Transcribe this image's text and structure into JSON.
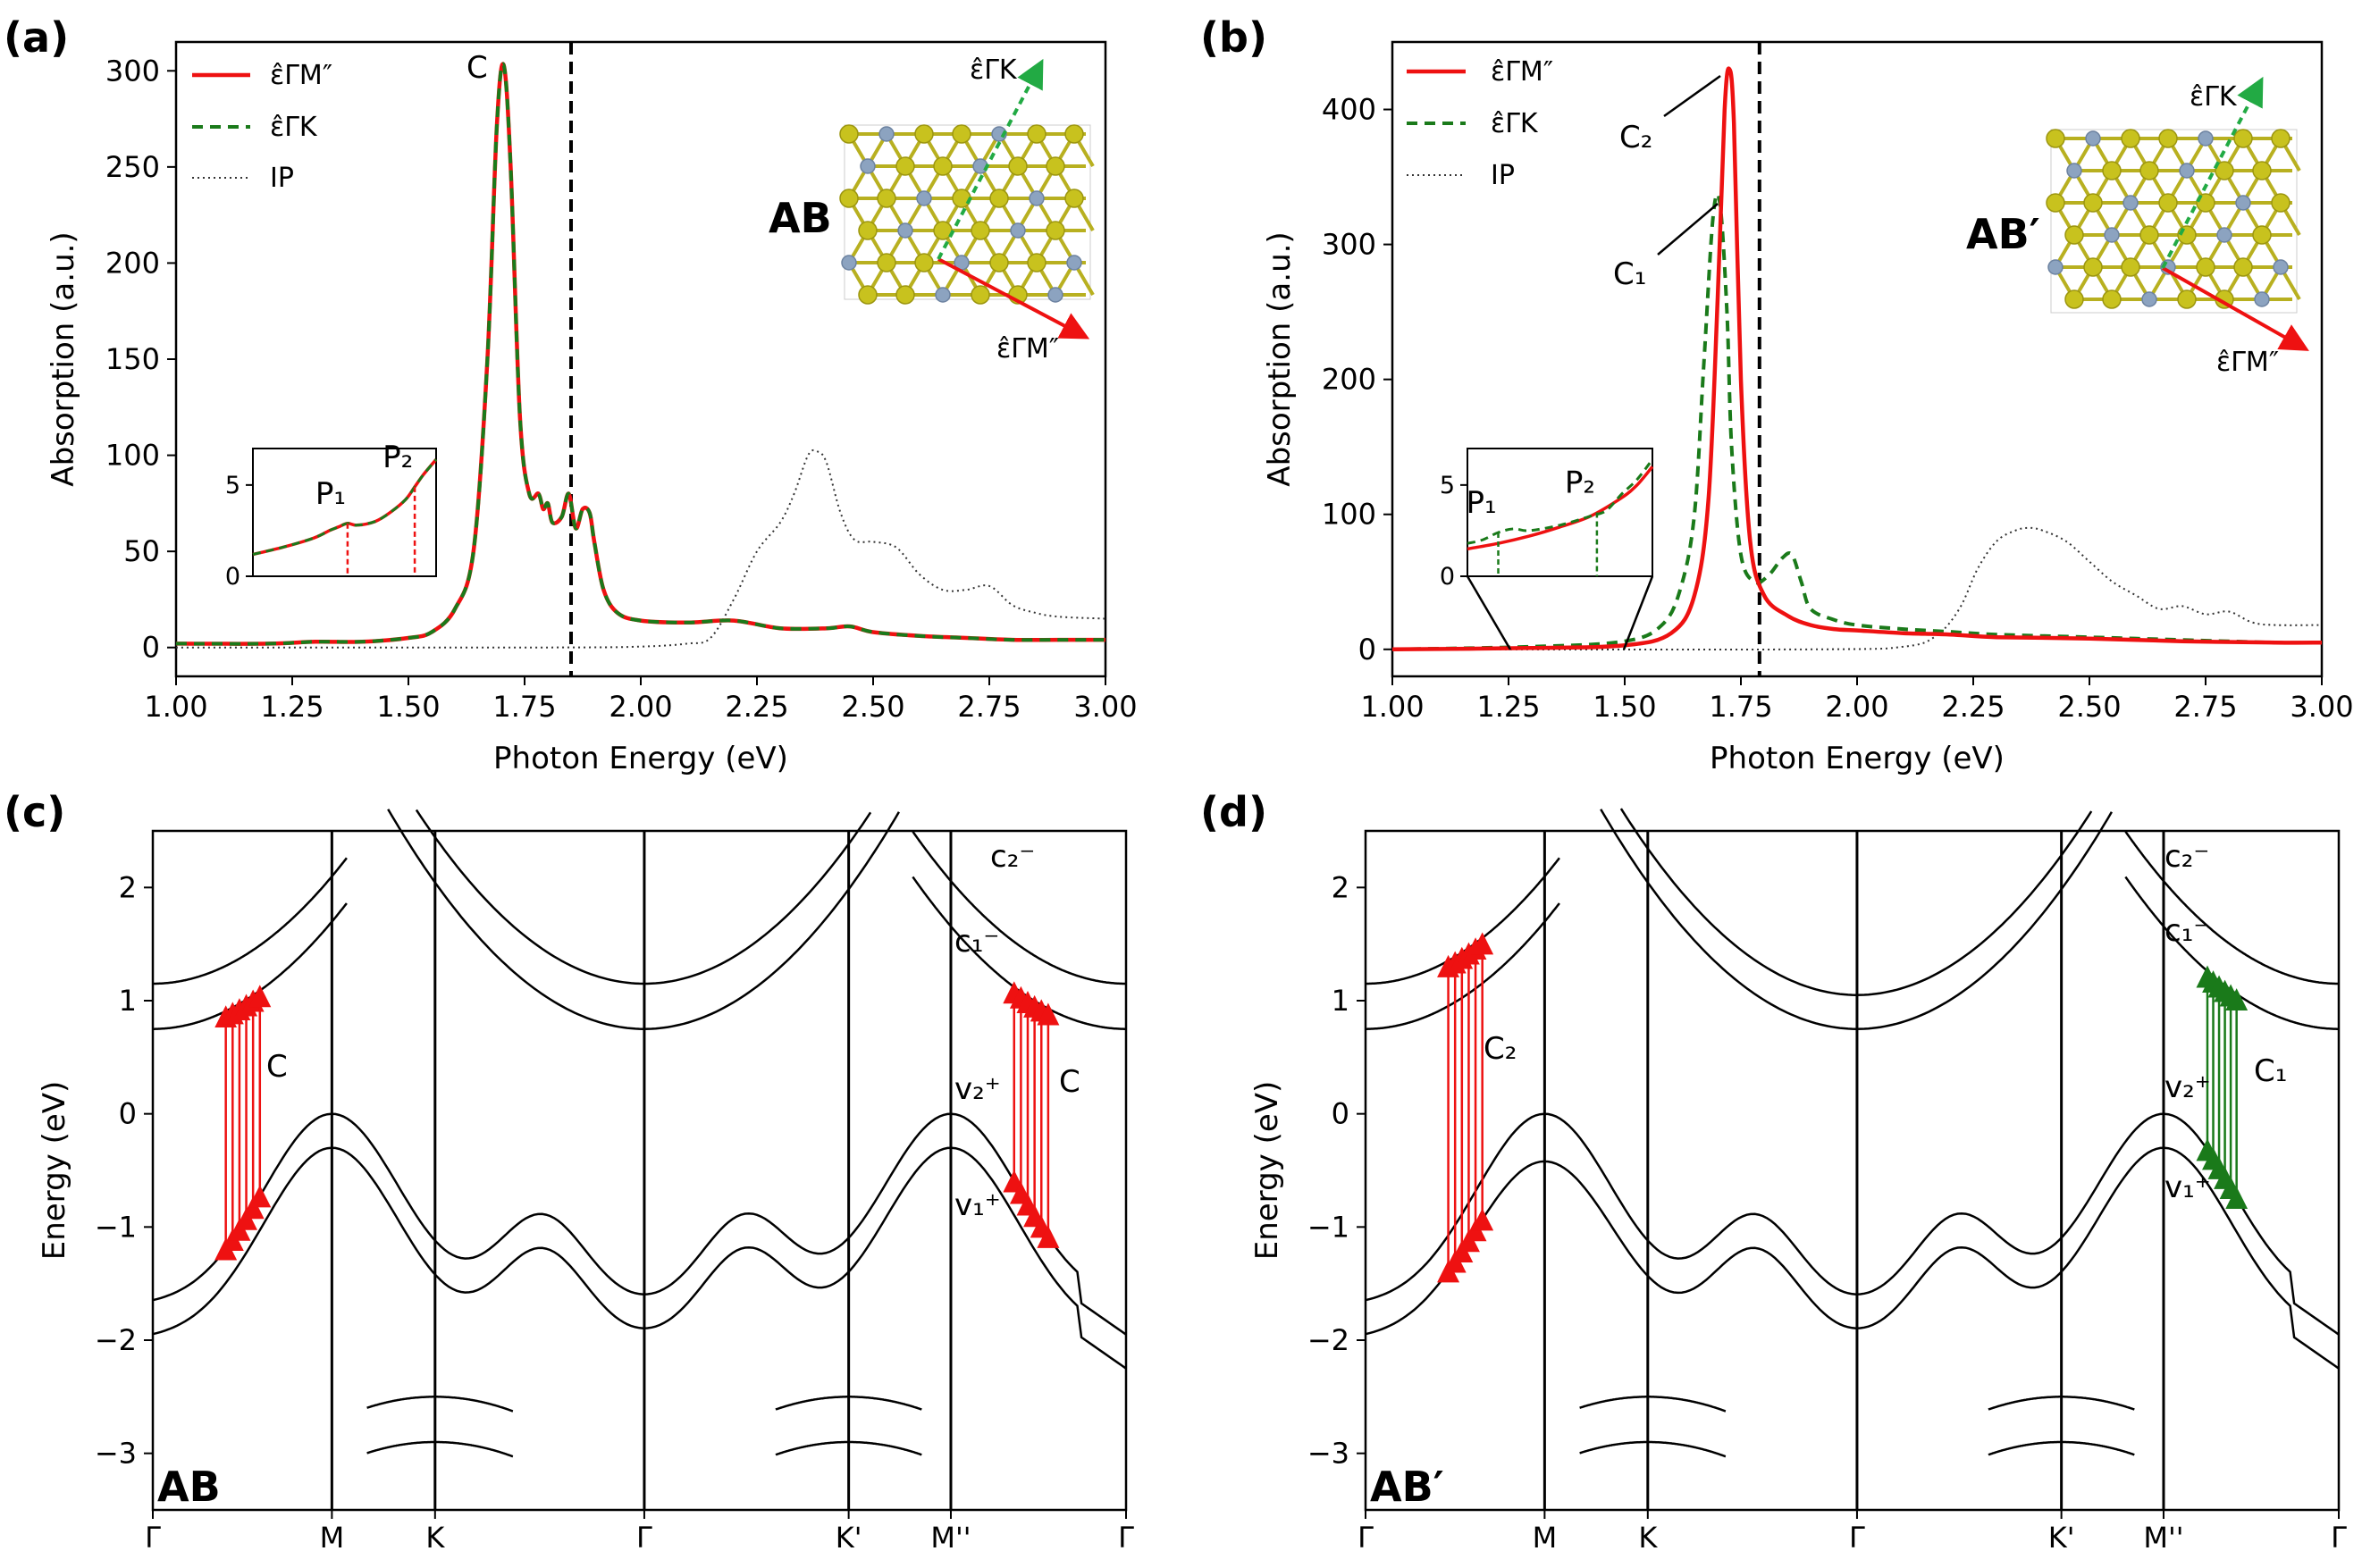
{
  "colors": {
    "red": "#ee1111",
    "green": "#1a7a1a",
    "ip": "#333333",
    "dashed_line": "#000000",
    "sulfur": "#c8c21e",
    "metal": "#8ca3c0"
  },
  "figure_labels": {
    "a": "(a)",
    "b": "(b)",
    "c": "(c)",
    "d": "(d)"
  },
  "structure_labels": {
    "a": "AB",
    "b": "AB′",
    "c": "AB",
    "d": "AB′"
  },
  "legend": [
    "ε̂ΓM″",
    "ε̂ΓK",
    "IP"
  ],
  "chart_data": [
    {
      "panel": "a",
      "type": "line",
      "xlabel": "Photon Energy (eV)",
      "ylabel": "Absorption (a.u.)",
      "xlim": [
        1.0,
        3.0
      ],
      "ylim": [
        -15,
        315
      ],
      "xticks": [
        1.0,
        1.25,
        1.5,
        1.75,
        2.0,
        2.25,
        2.5,
        2.75,
        3.0
      ],
      "xtick_labels": [
        "1.00",
        "1.25",
        "1.50",
        "1.75",
        "2.00",
        "2.25",
        "2.50",
        "2.75",
        "3.00"
      ],
      "yticks": [
        0,
        50,
        100,
        150,
        200,
        250,
        300
      ],
      "vline": 1.85,
      "peak_labels": [
        {
          "text": "C",
          "x": 1.695,
          "y": 305
        }
      ],
      "series": [
        {
          "name": "ε̂ΓM″",
          "x": [
            1.0,
            1.2,
            1.3,
            1.4,
            1.5,
            1.55,
            1.6,
            1.64,
            1.67,
            1.69,
            1.705,
            1.72,
            1.74,
            1.76,
            1.78,
            1.79,
            1.8,
            1.81,
            1.83,
            1.845,
            1.86,
            1.875,
            1.89,
            1.9,
            1.92,
            1.95,
            2.0,
            2.1,
            2.2,
            2.3,
            2.4,
            2.45,
            2.5,
            2.6,
            2.7,
            2.8,
            2.9,
            3.0
          ],
          "y": [
            2,
            2,
            3,
            3,
            5,
            8,
            20,
            50,
            150,
            270,
            303,
            250,
            120,
            80,
            80,
            72,
            75,
            65,
            68,
            80,
            62,
            72,
            70,
            55,
            30,
            18,
            14,
            13,
            14,
            10,
            10,
            11,
            8,
            6,
            5,
            4,
            4,
            4
          ]
        },
        {
          "name": "ε̂ΓK",
          "x": [
            1.0,
            1.2,
            1.3,
            1.4,
            1.5,
            1.55,
            1.6,
            1.64,
            1.67,
            1.69,
            1.705,
            1.72,
            1.74,
            1.76,
            1.78,
            1.79,
            1.8,
            1.81,
            1.83,
            1.845,
            1.86,
            1.875,
            1.89,
            1.9,
            1.92,
            1.95,
            2.0,
            2.1,
            2.2,
            2.3,
            2.4,
            2.45,
            2.5,
            2.6,
            2.7,
            2.8,
            2.9,
            3.0
          ],
          "y": [
            2,
            2,
            3,
            3,
            5,
            8,
            20,
            50,
            150,
            270,
            303,
            250,
            120,
            80,
            80,
            72,
            75,
            65,
            68,
            80,
            62,
            72,
            70,
            55,
            30,
            18,
            14,
            13,
            14,
            10,
            10,
            11,
            8,
            6,
            5,
            4,
            4,
            4
          ]
        },
        {
          "name": "IP",
          "x": [
            1.0,
            1.8,
            2.0,
            2.1,
            2.15,
            2.2,
            2.25,
            2.3,
            2.33,
            2.36,
            2.38,
            2.4,
            2.43,
            2.46,
            2.5,
            2.55,
            2.6,
            2.65,
            2.7,
            2.75,
            2.8,
            2.85,
            2.9,
            3.0
          ],
          "y": [
            0,
            0,
            0.5,
            2,
            5,
            25,
            50,
            65,
            80,
            100,
            102,
            96,
            70,
            56,
            55,
            52,
            38,
            30,
            30,
            32,
            22,
            18,
            16,
            15
          ]
        }
      ],
      "inset": {
        "xlim": [
          1.0,
          1.6
        ],
        "ylim": [
          0,
          7
        ],
        "yticks": [
          0,
          5
        ],
        "curve": {
          "x": [
            1.0,
            1.1,
            1.2,
            1.25,
            1.28,
            1.31,
            1.34,
            1.4,
            1.45,
            1.5,
            1.53,
            1.56,
            1.6
          ],
          "y": [
            1.2,
            1.6,
            2.1,
            2.5,
            2.7,
            2.9,
            2.8,
            3.0,
            3.5,
            4.2,
            4.9,
            5.6,
            6.4
          ]
        },
        "markers": [
          {
            "label": "P₁",
            "x": 1.31,
            "y": 2.9
          },
          {
            "label": "P₂",
            "x": 1.53,
            "y": 4.9
          }
        ]
      }
    },
    {
      "panel": "b",
      "type": "line",
      "xlabel": "Photon Energy (eV)",
      "ylabel": "Absorption (a.u.)",
      "xlim": [
        1.0,
        3.0
      ],
      "ylim": [
        -20,
        450
      ],
      "xticks": [
        1.0,
        1.25,
        1.5,
        1.75,
        2.0,
        2.25,
        2.5,
        2.75,
        3.0
      ],
      "xtick_labels": [
        "1.00",
        "1.25",
        "1.50",
        "1.75",
        "2.00",
        "2.25",
        "2.50",
        "2.75",
        "3.00"
      ],
      "yticks": [
        0,
        100,
        200,
        300,
        400
      ],
      "vline": 1.79,
      "peak_labels": [
        {
          "text": "C₂",
          "x": 1.72,
          "y": 430
        },
        {
          "text": "C₁",
          "x": 1.7,
          "y": 335
        }
      ],
      "series": [
        {
          "name": "ε̂ΓM″",
          "x": [
            1.0,
            1.3,
            1.5,
            1.6,
            1.65,
            1.68,
            1.7,
            1.715,
            1.725,
            1.735,
            1.75,
            1.77,
            1.8,
            1.85,
            1.9,
            1.95,
            2.0,
            2.1,
            2.2,
            2.3,
            2.5,
            2.7,
            2.9,
            3.0
          ],
          "y": [
            0,
            1,
            3,
            12,
            40,
            110,
            260,
            400,
            430,
            390,
            200,
            80,
            40,
            25,
            18,
            15,
            14,
            12,
            11,
            9,
            8,
            6,
            5,
            5
          ]
        },
        {
          "name": "ε̂ΓK",
          "x": [
            1.0,
            1.3,
            1.5,
            1.58,
            1.62,
            1.65,
            1.67,
            1.69,
            1.705,
            1.72,
            1.73,
            1.75,
            1.78,
            1.81,
            1.84,
            1.86,
            1.88,
            1.9,
            1.95,
            2.0,
            2.1,
            2.2,
            2.3,
            2.5,
            2.7,
            2.9,
            3.0
          ],
          "y": [
            0,
            2,
            6,
            18,
            45,
            100,
            210,
            320,
            330,
            250,
            150,
            70,
            50,
            55,
            68,
            70,
            50,
            30,
            22,
            18,
            15,
            13,
            11,
            9,
            7,
            5,
            5
          ]
        },
        {
          "name": "IP",
          "x": [
            1.0,
            1.9,
            2.1,
            2.17,
            2.22,
            2.26,
            2.3,
            2.34,
            2.37,
            2.4,
            2.45,
            2.5,
            2.55,
            2.6,
            2.65,
            2.7,
            2.75,
            2.8,
            2.85,
            2.9,
            3.0
          ],
          "y": [
            0,
            0,
            2,
            10,
            30,
            60,
            80,
            88,
            90,
            88,
            80,
            65,
            50,
            40,
            30,
            32,
            26,
            28,
            20,
            18,
            18
          ]
        }
      ],
      "inset": {
        "xlim": [
          1.0,
          1.6
        ],
        "ylim": [
          0,
          7
        ],
        "yticks": [
          0,
          5
        ],
        "curves": [
          {
            "color": "red",
            "x": [
              1.0,
              1.1,
              1.2,
              1.3,
              1.4,
              1.5,
              1.55,
              1.6
            ],
            "y": [
              1.5,
              1.8,
              2.2,
              2.7,
              3.3,
              4.3,
              5.0,
              6.0
            ]
          },
          {
            "color": "green",
            "x": [
              1.0,
              1.05,
              1.1,
              1.15,
              1.2,
              1.3,
              1.4,
              1.45,
              1.5,
              1.55,
              1.6
            ],
            "y": [
              1.8,
              2.0,
              2.4,
              2.6,
              2.5,
              2.8,
              3.3,
              3.6,
              4.5,
              5.3,
              6.4
            ]
          }
        ],
        "markers": [
          {
            "label": "P₁",
            "x": 1.1,
            "y": 2.4
          },
          {
            "label": "P₂",
            "x": 1.42,
            "y": 3.5
          }
        ]
      }
    },
    {
      "panel": "c",
      "type": "line",
      "ylabel": "Energy (eV)",
      "ylim": [
        -3.5,
        2.5
      ],
      "yticks": [
        -3,
        -2,
        -1,
        0,
        1,
        2
      ],
      "kpoint_labels": [
        "Γ",
        "M",
        "K",
        "Γ",
        "K'",
        "M''",
        "Γ"
      ],
      "band_labels": [
        "c₂⁻",
        "c₁⁻",
        "v₂⁺",
        "v₁⁺"
      ],
      "transition_labels": [
        "C",
        "C"
      ]
    },
    {
      "panel": "d",
      "type": "line",
      "ylabel": "Energy (eV)",
      "ylim": [
        -3.5,
        2.5
      ],
      "yticks": [
        -3,
        -2,
        -1,
        0,
        1,
        2
      ],
      "kpoint_labels": [
        "Γ",
        "M",
        "K",
        "Γ",
        "K'",
        "M''",
        "Γ"
      ],
      "band_labels": [
        "c₂⁻",
        "c₁⁻",
        "v₂⁺",
        "v₁⁺"
      ],
      "transition_labels": [
        "C₂",
        "C₁"
      ]
    }
  ]
}
